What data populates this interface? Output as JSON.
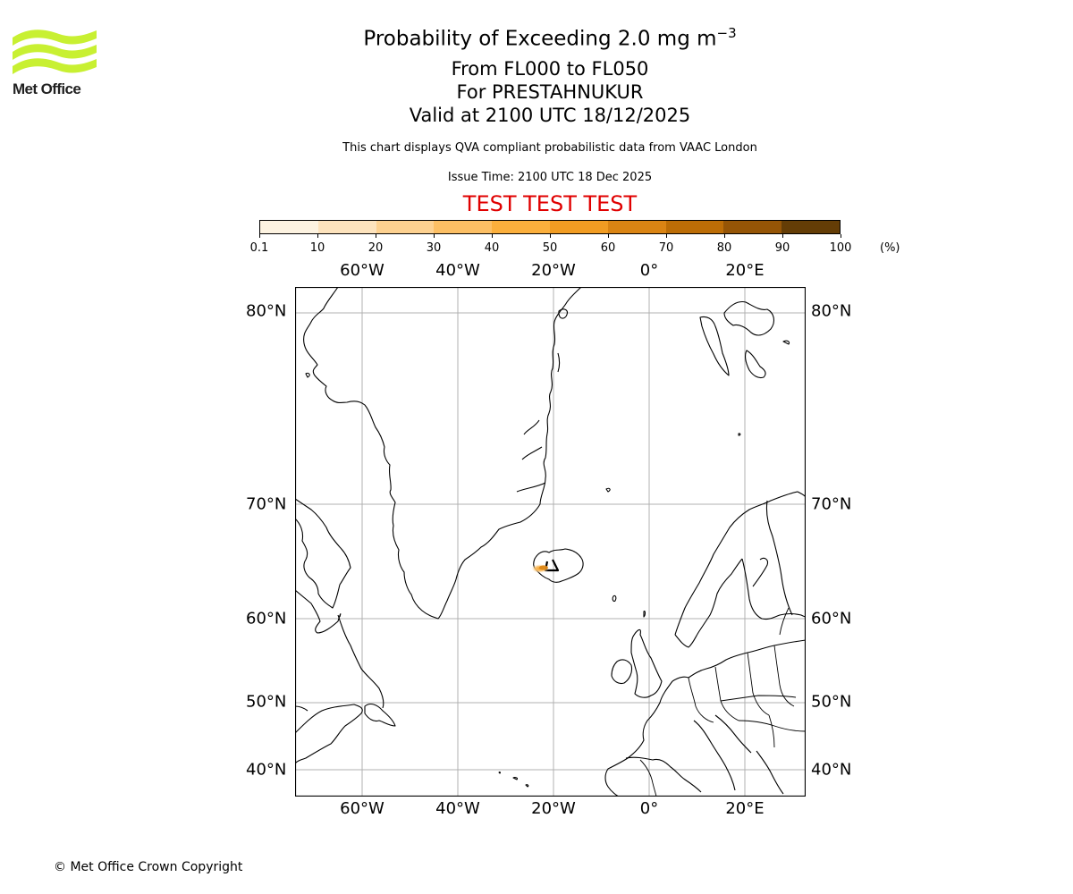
{
  "logo": {
    "text": "Met Office",
    "wave_color": "#c8f032"
  },
  "header": {
    "title_prefix": "Probability of Exceeding 2.0 mg m",
    "title_exponent": "−3",
    "flight_levels": "From FL000 to FL050",
    "volcano": "For PRESTAHNUKUR",
    "valid_time": "Valid at 2100 UTC 18/12/2025",
    "disclaimer": "This chart displays QVA compliant probabilistic data from VAAC London",
    "issue_time": "Issue Time: 2100 UTC 18 Dec 2025",
    "test_banner": "TEST TEST TEST",
    "test_banner_color": "#e00000"
  },
  "colorbar": {
    "unit": "(%)",
    "ticks": [
      "0.1",
      "10",
      "20",
      "30",
      "40",
      "50",
      "60",
      "70",
      "80",
      "90",
      "100"
    ],
    "colors": [
      "#fdf3e1",
      "#fde3bd",
      "#fdd190",
      "#fcbf64",
      "#fbaf3c",
      "#f19c22",
      "#da8413",
      "#bc6d06",
      "#955506",
      "#643d06"
    ]
  },
  "map": {
    "lon_labels": [
      "60°W",
      "40°W",
      "20°W",
      "0°",
      "20°E"
    ],
    "lat_labels": [
      "80°N",
      "70°N",
      "60°N",
      "50°N",
      "40°N"
    ],
    "coastline_color": "#000000",
    "grid_color": "#b0b0b0",
    "ash_plume": {
      "location": "Iceland (Reykjanes peninsula)",
      "max_band": "50-60"
    }
  },
  "chart_data": {
    "type": "heatmap",
    "title": "Probability of Exceeding 2.0 mg m−3",
    "subtitle": [
      "From FL000 to FL050",
      "For PRESTAHNUKUR",
      "Valid at 2100 UTC 18/12/2025"
    ],
    "colorbar_bins": [
      0.1,
      10,
      20,
      30,
      40,
      50,
      60,
      70,
      80,
      90,
      100
    ],
    "colorbar_unit": "%",
    "x_ticks": [
      "60°W",
      "40°W",
      "20°W",
      "0°",
      "20°E"
    ],
    "y_ticks": [
      "80°N",
      "70°N",
      "60°N",
      "50°N",
      "40°N"
    ],
    "extent": {
      "lon": [
        -74,
        32
      ],
      "lat": [
        38,
        82
      ]
    },
    "grid": true,
    "features": [
      {
        "name": "ash probability area",
        "lon_approx": [
          -24,
          -20
        ],
        "lat_approx": [
          63.7,
          64.3
        ],
        "probability_range_pct": [
          0.1,
          60
        ]
      }
    ]
  },
  "footer": {
    "copyright": "© Met Office Crown Copyright"
  }
}
